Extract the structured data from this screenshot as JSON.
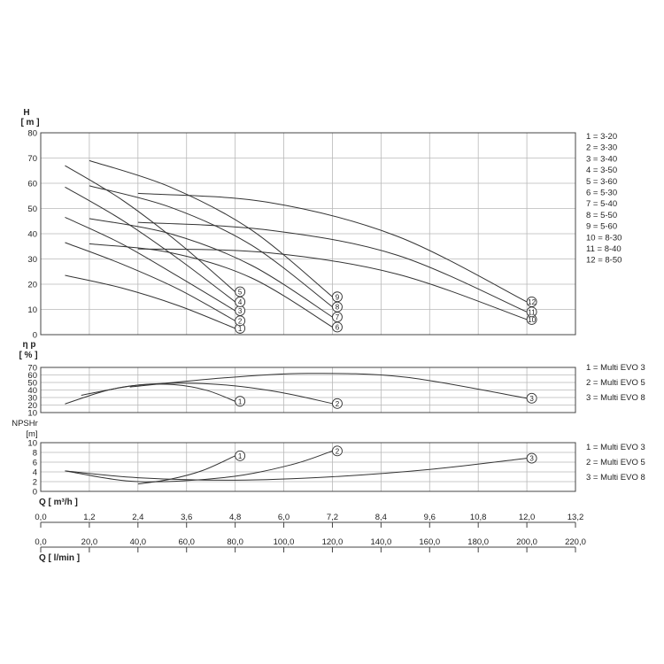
{
  "chart_data": [
    {
      "type": "line",
      "panel": "head",
      "title": "",
      "ylabel": "H",
      "yunit": "[ m ]",
      "ylim": [
        0,
        80
      ],
      "yticks": [
        0,
        10,
        20,
        30,
        40,
        50,
        60,
        70,
        80
      ],
      "xlim": [
        0,
        13.2
      ],
      "legend": [
        "1 = 3-20",
        "2 = 3-30",
        "3 = 3-40",
        "4 = 3-50",
        "5 = 3-60",
        "6 = 5-30",
        "7 = 5-40",
        "8 = 5-50",
        "9 = 5-60",
        "10 = 8-30",
        "11 = 8-40",
        "12 = 8-50"
      ],
      "legend_position": "right",
      "series": [
        {
          "name": "1",
          "x": [
            0.6,
            2.0,
            3.4,
            4.8
          ],
          "y": [
            23.5,
            18.5,
            11.5,
            2.5
          ]
        },
        {
          "name": "2",
          "x": [
            0.6,
            2.0,
            3.4,
            4.8
          ],
          "y": [
            36.5,
            28.0,
            18.0,
            5.5
          ]
        },
        {
          "name": "3",
          "x": [
            0.6,
            2.0,
            3.4,
            4.8
          ],
          "y": [
            46.5,
            36.0,
            23.0,
            9.5
          ]
        },
        {
          "name": "4",
          "x": [
            0.6,
            2.0,
            3.4,
            4.8
          ],
          "y": [
            58.5,
            45.5,
            30.0,
            13.0
          ]
        },
        {
          "name": "5",
          "x": [
            0.6,
            2.0,
            3.4,
            4.8
          ],
          "y": [
            67.0,
            53.5,
            36.5,
            17.0
          ]
        },
        {
          "name": "6",
          "x": [
            1.2,
            3.2,
            5.2,
            7.2
          ],
          "y": [
            36.0,
            32.5,
            22.5,
            3.0
          ]
        },
        {
          "name": "7",
          "x": [
            1.2,
            3.2,
            5.2,
            7.2
          ],
          "y": [
            46.0,
            40.0,
            27.5,
            7.0
          ]
        },
        {
          "name": "8",
          "x": [
            1.2,
            3.2,
            5.2,
            7.2
          ],
          "y": [
            59.0,
            50.5,
            35.5,
            11.0
          ]
        },
        {
          "name": "9",
          "x": [
            1.2,
            3.2,
            5.2,
            7.2
          ],
          "y": [
            69.0,
            58.5,
            41.5,
            15.0
          ]
        },
        {
          "name": "10",
          "x": [
            2.4,
            5.6,
            8.8,
            12.0
          ],
          "y": [
            34.0,
            32.5,
            24.0,
            6.0
          ]
        },
        {
          "name": "11",
          "x": [
            2.4,
            5.6,
            8.8,
            12.0
          ],
          "y": [
            44.5,
            41.5,
            31.5,
            9.0
          ]
        },
        {
          "name": "12",
          "x": [
            2.4,
            5.6,
            8.8,
            12.0
          ],
          "y": [
            56.0,
            52.5,
            39.0,
            13.0
          ]
        }
      ]
    },
    {
      "type": "line",
      "panel": "efficiency",
      "title": "",
      "ylabel": "η p",
      "yunit": "[ % ]",
      "ylim": [
        10,
        70
      ],
      "yticks": [
        10,
        20,
        30,
        40,
        50,
        60,
        70
      ],
      "xlim": [
        0,
        13.2
      ],
      "legend": [
        "1 = Multi EVO 3",
        "2 = Multi EVO 5",
        "3 = Multi EVO 8"
      ],
      "legend_position": "right",
      "series": [
        {
          "name": "1",
          "x": [
            0.6,
            1.6,
            2.4,
            3.3,
            4.1,
            4.8
          ],
          "y": [
            21.5,
            39.0,
            46.5,
            47.0,
            39.5,
            25.0
          ]
        },
        {
          "name": "2",
          "x": [
            1.0,
            2.5,
            4.2,
            5.8,
            7.2
          ],
          "y": [
            33.0,
            47.0,
            48.0,
            38.0,
            22.0
          ]
        },
        {
          "name": "3",
          "x": [
            2.2,
            4.5,
            6.6,
            9.0,
            12.0
          ],
          "y": [
            44.0,
            56.0,
            62.0,
            57.0,
            29.0
          ]
        }
      ]
    },
    {
      "type": "line",
      "panel": "npshr",
      "title": "",
      "ylabel": "NPSHr",
      "yunit": "[m]",
      "ylim": [
        0,
        10
      ],
      "yticks": [
        0,
        2,
        4,
        6,
        8,
        10
      ],
      "xlim": [
        0,
        13.2
      ],
      "xlabel": "Q [ m³/h ]",
      "xticks": [
        "0,0",
        "1,2",
        "2,4",
        "3,6",
        "4,8",
        "6,0",
        "7,2",
        "8,4",
        "9,6",
        "10,8",
        "12,0",
        "13,2"
      ],
      "xlabel2": "Q [ l/min ]",
      "xticks2": [
        "0,0",
        "20,0",
        "40,0",
        "60,0",
        "80,0",
        "100,0",
        "120,0",
        "140,0",
        "160,0",
        "180,0",
        "200,0",
        "220,0"
      ],
      "legend": [
        "1 = Multi EVO 3",
        "2 = Multi EVO 5",
        "3 = Multi EVO 8"
      ],
      "legend_position": "right",
      "series": [
        {
          "name": "1",
          "x": [
            2.4,
            3.2,
            4.0,
            4.8
          ],
          "y": [
            1.5,
            2.5,
            4.3,
            7.3
          ]
        },
        {
          "name": "2",
          "x": [
            0.6,
            2.4,
            4.6,
            6.2,
            7.2
          ],
          "y": [
            4.2,
            2.0,
            2.9,
            5.5,
            8.3
          ]
        },
        {
          "name": "3",
          "x": [
            0.6,
            2.4,
            4.8,
            7.2,
            9.6,
            12.0
          ],
          "y": [
            4.2,
            2.8,
            2.3,
            3.0,
            4.5,
            6.8
          ]
        }
      ]
    }
  ]
}
